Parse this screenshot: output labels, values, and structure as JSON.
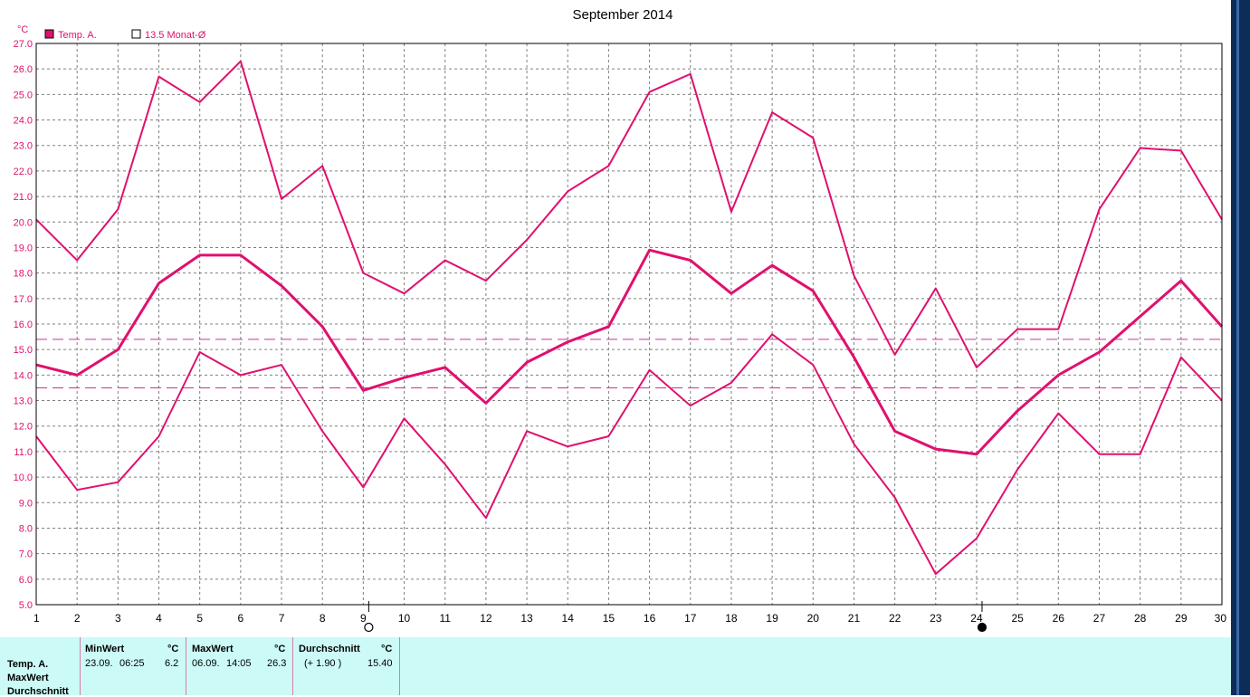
{
  "chart_data": {
    "type": "line",
    "title": "September 2014",
    "ylabel": "°C",
    "xlabel": "",
    "xlim": [
      1,
      30
    ],
    "ylim": [
      5.0,
      27.0
    ],
    "yticks": [
      "5.0",
      "6.0",
      "7.0",
      "8.0",
      "9.0",
      "10.0",
      "11.0",
      "12.0",
      "13.0",
      "14.0",
      "15.0",
      "16.0",
      "17.0",
      "18.0",
      "19.0",
      "20.0",
      "21.0",
      "22.0",
      "23.0",
      "24.0",
      "25.0",
      "26.0",
      "27.0"
    ],
    "x": [
      1,
      2,
      3,
      4,
      5,
      6,
      7,
      8,
      9,
      10,
      11,
      12,
      13,
      14,
      15,
      16,
      17,
      18,
      19,
      20,
      21,
      22,
      23,
      24,
      25,
      26,
      27,
      28,
      29,
      30
    ],
    "grid": true,
    "legend": [
      {
        "label": "Temp. A.",
        "filled": true
      },
      {
        "label": "13.5 Monat-Ø",
        "filled": false
      }
    ],
    "series": [
      {
        "role": "max",
        "values": [
          20.1,
          18.5,
          20.5,
          25.7,
          24.7,
          26.3,
          20.9,
          22.2,
          18.0,
          17.2,
          18.5,
          17.7,
          19.3,
          21.2,
          22.2,
          25.1,
          25.8,
          20.4,
          24.3,
          23.3,
          17.9,
          14.8,
          17.4,
          14.3,
          15.8,
          15.8,
          20.5,
          22.9,
          22.8,
          20.1
        ]
      },
      {
        "role": "avg",
        "values": [
          14.4,
          14.0,
          15.0,
          17.6,
          18.7,
          18.7,
          17.5,
          15.9,
          13.4,
          13.9,
          14.3,
          12.9,
          14.5,
          15.3,
          15.9,
          18.9,
          18.5,
          17.2,
          18.3,
          17.3,
          14.7,
          11.8,
          11.1,
          10.9,
          12.6,
          14.0,
          14.9,
          16.3,
          17.7,
          15.9
        ]
      },
      {
        "role": "min",
        "values": [
          11.6,
          9.5,
          9.8,
          11.6,
          14.9,
          14.0,
          14.4,
          11.8,
          9.6,
          12.3,
          10.5,
          8.4,
          11.8,
          11.2,
          11.6,
          14.2,
          12.8,
          13.7,
          15.6,
          14.4,
          11.3,
          9.2,
          6.2,
          7.6,
          10.3,
          12.5,
          10.9,
          10.9,
          14.7,
          13.0
        ]
      }
    ],
    "reference_lines": [
      15.4,
      13.5
    ],
    "moon_phases": [
      {
        "x": 9,
        "phase": "full-moon"
      },
      {
        "x": 24,
        "phase": "new-moon"
      }
    ],
    "colors": {
      "line": "#e0106e",
      "grid": "#808080",
      "panel": "#ccfbf7",
      "strip": "#0b2d57"
    }
  },
  "stats": {
    "row_labels": [
      "Temp. A.",
      "MaxWert",
      "Durchschnitt"
    ],
    "min": {
      "header": "MinWert",
      "unit": "°C",
      "date": "23.09.",
      "time": "06:25",
      "value": "6.2"
    },
    "max": {
      "header": "MaxWert",
      "unit": "°C",
      "date": "06.09.",
      "time": "14:05",
      "value": "26.3"
    },
    "avg": {
      "header": "Durchschnitt",
      "unit": "°C",
      "delta": "(+ 1.90 )",
      "value": "15.40"
    }
  }
}
